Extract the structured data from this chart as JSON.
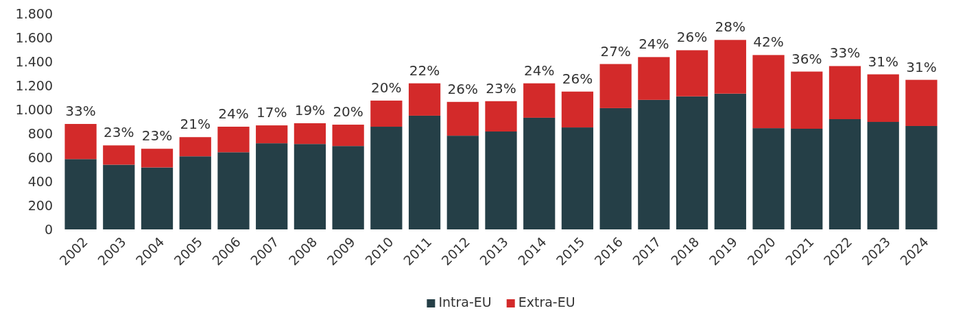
{
  "chart_data": {
    "type": "bar",
    "stacked": true,
    "legend": "bottom",
    "categories": [
      "2002",
      "2003",
      "2004",
      "2005",
      "2006",
      "2007",
      "2008",
      "2009",
      "2010",
      "2011",
      "2012",
      "2013",
      "2014",
      "2015",
      "2016",
      "2017",
      "2018",
      "2019",
      "2020",
      "2021",
      "2022",
      "2023",
      "2024"
    ],
    "series": [
      {
        "name": "Intra-EU",
        "color": "#253f47",
        "values": [
          587,
          540,
          517,
          610,
          644,
          719,
          713,
          696,
          857,
          949,
          782,
          817,
          932,
          851,
          1012,
          1081,
          1110,
          1133,
          845,
          840,
          920,
          897,
          863
        ]
      },
      {
        "name": "Extra-EU",
        "color": "#d32a2a",
        "values": [
          293,
          161,
          156,
          160,
          213,
          149,
          173,
          178,
          218,
          270,
          282,
          253,
          287,
          299,
          368,
          357,
          385,
          448,
          610,
          477,
          443,
          397,
          385
        ]
      }
    ],
    "ylim": [
      0,
      1800
    ],
    "yticks": [
      0,
      200,
      400,
      600,
      800,
      {
        "value": 1000,
        "label": "1.000"
      },
      {
        "value": 1200,
        "label": "1.200"
      },
      {
        "value": 1400,
        "label": "1.400"
      },
      {
        "value": 1600,
        "label": "1.600"
      },
      {
        "value": 1800,
        "label": "1.800"
      }
    ],
    "annotations": [
      {
        "text": "33%",
        "x": "2002",
        "y": 880
      },
      {
        "text": "23%",
        "x": "2003",
        "y": 701
      },
      {
        "text": "23%",
        "x": "2004",
        "y": 673
      },
      {
        "text": "21%",
        "x": "2005",
        "y": 770
      },
      {
        "text": "24%",
        "x": "2006",
        "y": 857
      },
      {
        "text": "17%",
        "x": "2007",
        "y": 868
      },
      {
        "text": "19%",
        "x": "2008",
        "y": 886
      },
      {
        "text": "20%",
        "x": "2009",
        "y": 874
      },
      {
        "text": "20%",
        "x": "2010",
        "y": 1075
      },
      {
        "text": "22%",
        "x": "2011",
        "y": 1219
      },
      {
        "text": "26%",
        "x": "2012",
        "y": 1064
      },
      {
        "text": "23%",
        "x": "2013",
        "y": 1070
      },
      {
        "text": "24%",
        "x": "2014",
        "y": 1219
      },
      {
        "text": "26%",
        "x": "2015",
        "y": 1150
      },
      {
        "text": "27%",
        "x": "2016",
        "y": 1380
      },
      {
        "text": "24%",
        "x": "2017",
        "y": 1438
      },
      {
        "text": "26%",
        "x": "2018",
        "y": 1495
      },
      {
        "text": "28%",
        "x": "2019",
        "y": 1581
      },
      {
        "text": "42%",
        "x": "2020",
        "y": 1455
      },
      {
        "text": "36%",
        "x": "2021",
        "y": 1317
      },
      {
        "text": "33%",
        "x": "2022",
        "y": 1363
      },
      {
        "text": "31%",
        "x": "2023",
        "y": 1294
      },
      {
        "text": "31%",
        "x": "2024",
        "y": 1248
      }
    ]
  }
}
